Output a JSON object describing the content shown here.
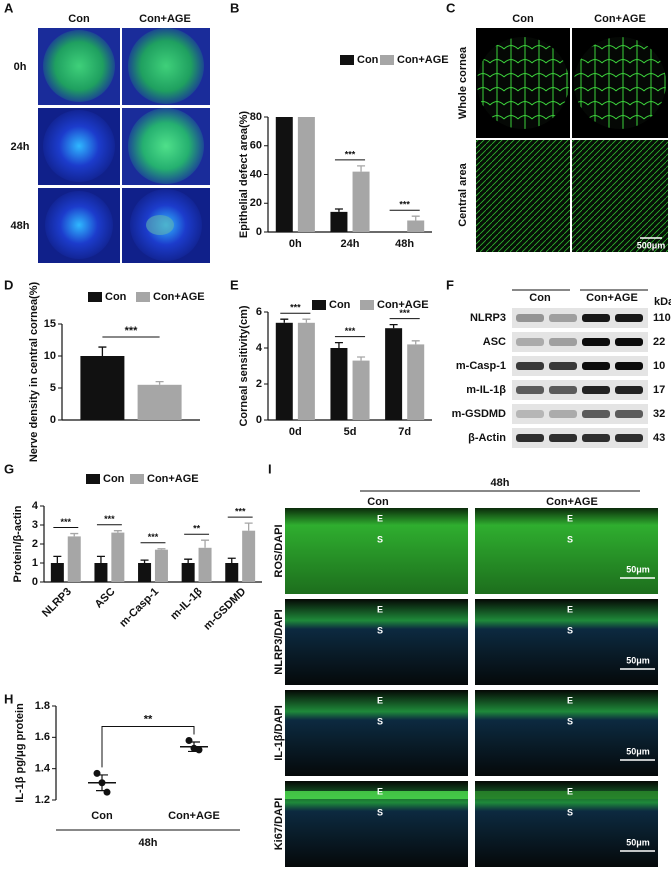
{
  "panel_labels": [
    "A",
    "B",
    "C",
    "D",
    "E",
    "F",
    "G",
    "H",
    "I"
  ],
  "panel_a": {
    "columns": [
      "Con",
      "Con+AGE"
    ],
    "rows": [
      "0h",
      "24h",
      "48h"
    ]
  },
  "panel_c": {
    "columns": [
      "Con",
      "Con+AGE"
    ],
    "rows": [
      "Whole cornea",
      "Central area"
    ],
    "scale_bar": "500μm"
  },
  "panel_f": {
    "groups": [
      "Con",
      "Con+AGE"
    ],
    "unit": "kDa",
    "rows": [
      {
        "name": "NLRP3",
        "kda": "110"
      },
      {
        "name": "ASC",
        "kda": "22"
      },
      {
        "name": "m-Casp-1",
        "kda": "10"
      },
      {
        "name": "m-IL-1β",
        "kda": "17"
      },
      {
        "name": "m-GSDMD",
        "kda": "32"
      },
      {
        "name": "β-Actin",
        "kda": "43"
      }
    ]
  },
  "panel_i": {
    "time": "48h",
    "columns": [
      "Con",
      "Con+AGE"
    ],
    "rows": [
      "ROS/DAPI",
      "NLRP3/DAPI",
      "IL-1β/DAPI",
      "Ki67/DAPI"
    ],
    "layer_labels": [
      "E",
      "S"
    ],
    "scale_bar": "50μm"
  },
  "chart_data": [
    {
      "type": "bar",
      "y_label": "Epithelial defect area(%)",
      "categories": [
        "0h",
        "24h",
        "48h"
      ],
      "series": [
        {
          "name": "Con",
          "color": "#111111",
          "values": [
            80,
            14,
            0
          ],
          "errors": [
            null,
            2,
            null
          ]
        },
        {
          "name": "Con+AGE",
          "color": "#a6a6a6",
          "values": [
            80,
            42,
            8
          ],
          "errors": [
            null,
            4,
            3
          ]
        }
      ],
      "significance": [
        null,
        "***",
        "***"
      ],
      "ylim": [
        0,
        80
      ],
      "yticks": [
        0,
        20,
        40,
        60,
        80
      ]
    },
    {
      "type": "bar",
      "y_label": "Nerve density in central cornea(%)",
      "categories": [
        null
      ],
      "series": [
        {
          "name": "Con",
          "color": "#111111",
          "values": [
            10
          ],
          "errors": [
            1.4
          ]
        },
        {
          "name": "Con+AGE",
          "color": "#a6a6a6",
          "values": [
            5.5
          ],
          "errors": [
            0.5
          ]
        }
      ],
      "significance": "***",
      "ylim": [
        0,
        15
      ],
      "yticks": [
        0,
        5,
        10,
        15
      ]
    },
    {
      "type": "bar",
      "y_label": "Corneal sensitivity(cm)",
      "categories": [
        "0d",
        "5d",
        "7d"
      ],
      "series": [
        {
          "name": "Con",
          "color": "#111111",
          "values": [
            5.4,
            4.0,
            5.1
          ],
          "errors": [
            0.2,
            0.3,
            0.2
          ]
        },
        {
          "name": "Con+AGE",
          "color": "#a6a6a6",
          "values": [
            5.4,
            3.3,
            4.2
          ],
          "errors": [
            0.2,
            0.2,
            0.2
          ]
        }
      ],
      "significance": [
        "***",
        "***",
        "***"
      ],
      "ylim": [
        0,
        6
      ],
      "yticks": [
        0,
        2,
        4,
        6
      ]
    },
    {
      "type": "bar",
      "y_label": "Protein/β-actin",
      "categories": [
        "NLRP3",
        "ASC",
        "m-Casp-1",
        "m-IL-1β",
        "m-GSDMD"
      ],
      "series": [
        {
          "name": "Con",
          "color": "#111111",
          "values": [
            1,
            1,
            1,
            1,
            1
          ],
          "errors": [
            0.35,
            0.35,
            0.15,
            0.2,
            0.25
          ]
        },
        {
          "name": "Con+AGE",
          "color": "#a6a6a6",
          "values": [
            2.4,
            2.6,
            1.7,
            1.8,
            2.7
          ],
          "errors": [
            0.15,
            0.1,
            0.05,
            0.4,
            0.4
          ]
        }
      ],
      "significance": [
        "***",
        "***",
        "***",
        "**",
        "***"
      ],
      "ylim": [
        0,
        4
      ],
      "yticks": [
        0,
        1,
        2,
        3,
        4
      ]
    },
    {
      "type": "dot",
      "y_label": "IL-1β pg/μg protein",
      "categories": [
        "Con",
        "Con+AGE"
      ],
      "points": [
        [
          1.37,
          1.31,
          1.25
        ],
        [
          1.58,
          1.53,
          1.52
        ]
      ],
      "means": [
        1.31,
        1.54
      ],
      "errors": [
        0.05,
        0.03
      ],
      "significance": "**",
      "group_label": "48h",
      "ylim": [
        1.2,
        1.8
      ],
      "yticks": [
        1.2,
        1.4,
        1.6,
        1.8
      ]
    }
  ]
}
